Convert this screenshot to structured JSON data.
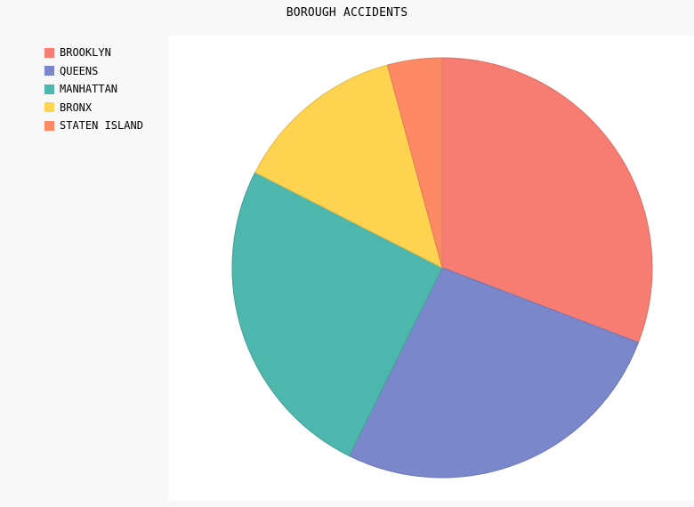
{
  "chart_data": {
    "type": "pie",
    "title": "BOROUGH ACCIDENTS",
    "legend_position": "top-left",
    "slices": [
      {
        "label": "BROOKLYN",
        "value": 30.8,
        "color": "#f77d73"
      },
      {
        "label": "QUEENS",
        "value": 26.5,
        "color": "#7b87cb"
      },
      {
        "label": "MANHATTAN",
        "value": 25.2,
        "color": "#4db6ad"
      },
      {
        "label": "BRONX",
        "value": 13.3,
        "color": "#fed350"
      },
      {
        "label": "STATEN ISLAND",
        "value": 4.2,
        "color": "#fe8a65"
      }
    ]
  }
}
